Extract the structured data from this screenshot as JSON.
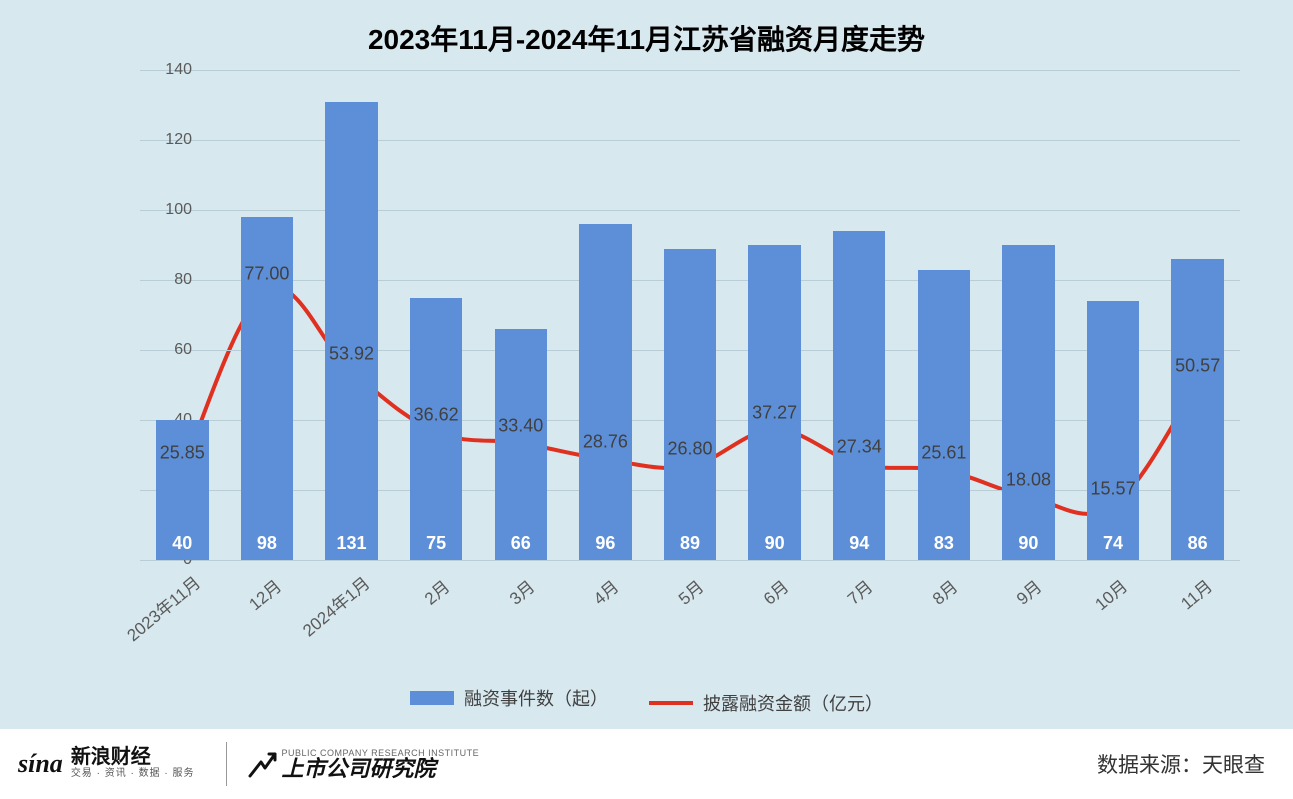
{
  "title": "2023年11月-2024年11月江苏省融资月度走势",
  "chart": {
    "type": "bar+line",
    "background_color": "#d7e8ef",
    "grid_color": "#b8cdd6",
    "bar_color": "#5d8fd8",
    "line_color": "#e03020",
    "line_width": 4,
    "bar_width_ratio": 0.62,
    "bar_label_color": "#ffffff",
    "bar_label_fontsize": 18,
    "line_label_color": "#404040",
    "line_label_fontsize": 18,
    "tick_color": "#5a5a5a",
    "tick_fontsize": 16,
    "title_fontsize": 28,
    "ylim": [
      0,
      140
    ],
    "ytick_step": 20,
    "categories": [
      "2023年11月",
      "12月",
      "2024年1月",
      "2月",
      "3月",
      "4月",
      "5月",
      "6月",
      "7月",
      "8月",
      "9月",
      "10月",
      "11月"
    ],
    "bar_values": [
      40,
      98,
      131,
      75,
      66,
      96,
      89,
      90,
      94,
      83,
      90,
      74,
      86
    ],
    "line_values": [
      25.85,
      77.0,
      53.92,
      36.62,
      33.4,
      28.76,
      26.8,
      37.27,
      27.34,
      25.61,
      18.08,
      15.57,
      50.57
    ],
    "line_labels": [
      "25.85",
      "77.00",
      "53.92",
      "36.62",
      "33.40",
      "28.76",
      "26.80",
      "37.27",
      "27.34",
      "25.61",
      "18.08",
      "15.57",
      "50.57"
    ]
  },
  "legend": {
    "bar_label": "融资事件数（起）",
    "line_label": "披露融资金额（亿元）"
  },
  "footer": {
    "sina_logo_text": "sína",
    "sina_cn_main": "新浪财经",
    "sina_cn_sub": "交易 · 资讯 · 数据 · 服务",
    "institute_en": "PUBLIC COMPANY RESEARCH INSTITUTE",
    "institute_cn": "上市公司研究院",
    "source_label": "数据来源：天眼查"
  }
}
